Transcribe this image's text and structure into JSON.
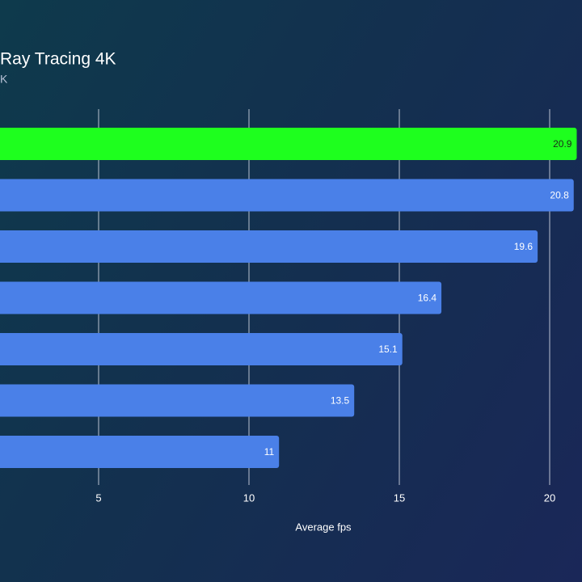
{
  "chart_data": {
    "type": "hbar",
    "title": "Ray Tracing 4K",
    "subtitle": "K",
    "categories": [
      null,
      null,
      null,
      null,
      null,
      null,
      null
    ],
    "values": [
      20.9,
      20.8,
      19.6,
      16.4,
      15.1,
      13.5,
      11
    ],
    "colors": [
      "#1eff1e",
      "#4a80e8",
      "#4a80e8",
      "#4a80e8",
      "#4a80e8",
      "#4a80e8",
      "#4a80e8"
    ],
    "xlabel": "Average fps",
    "xlim": [
      0,
      21
    ],
    "xticks": [
      5,
      10,
      15,
      20
    ],
    "grid": true
  }
}
